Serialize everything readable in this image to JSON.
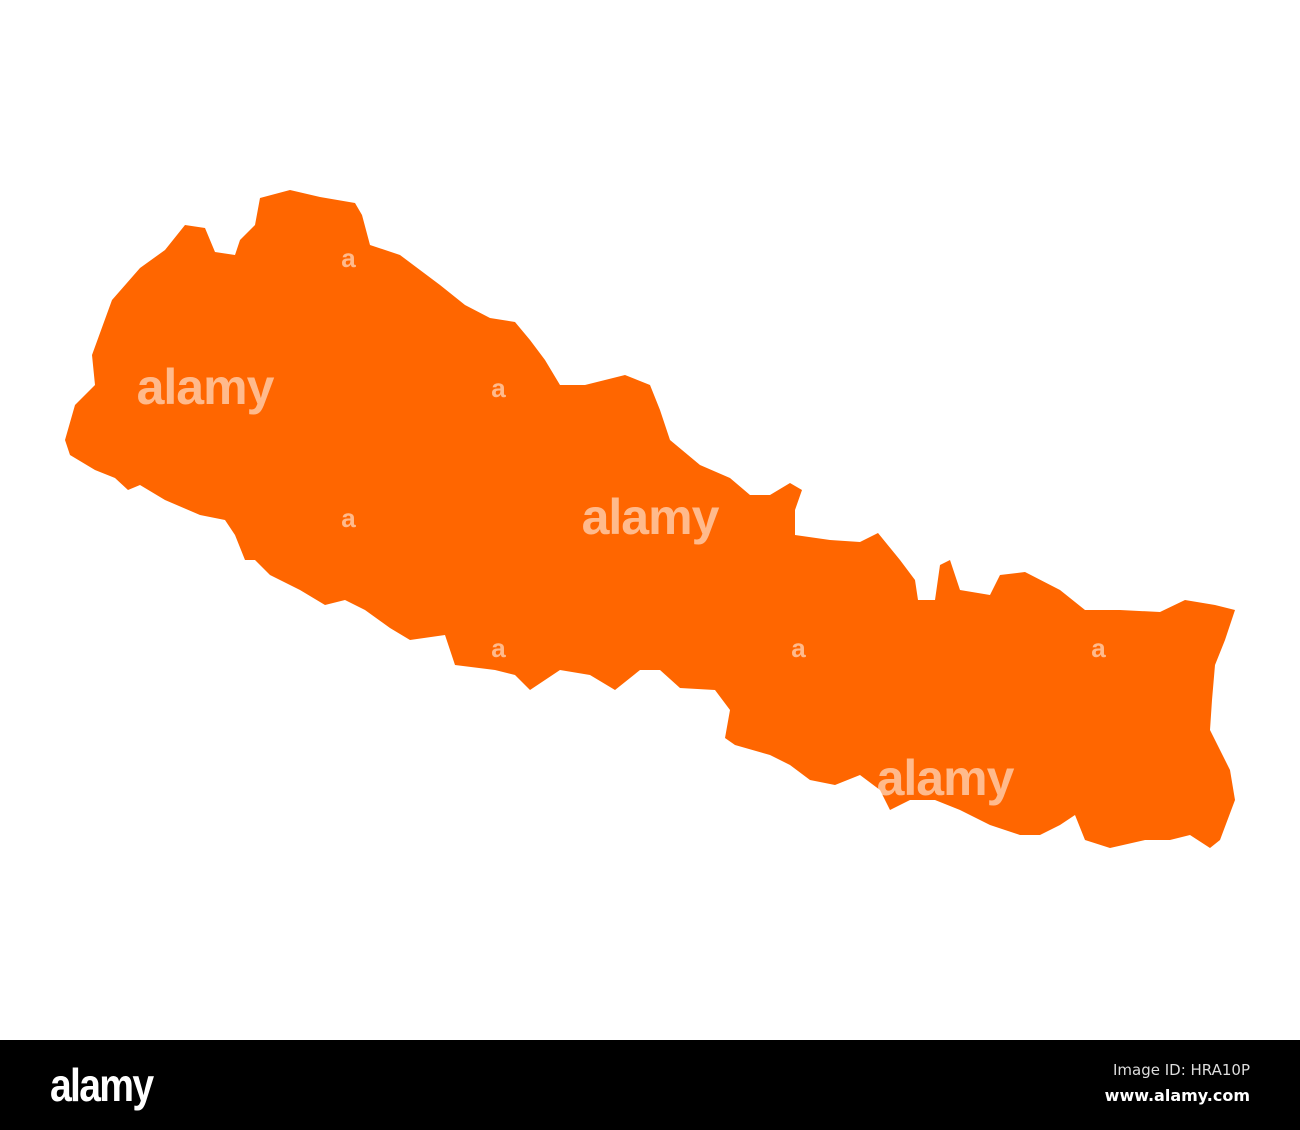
{
  "map": {
    "region": "Nepal",
    "fill_color": "#ff6600",
    "background_color": "#ffffff"
  },
  "watermark": {
    "word": "alamy",
    "letter": "a"
  },
  "footer": {
    "logo": "alamy",
    "image_id": "Image ID: HRA10P",
    "website": "www.alamy.com",
    "background_color": "#000000"
  }
}
